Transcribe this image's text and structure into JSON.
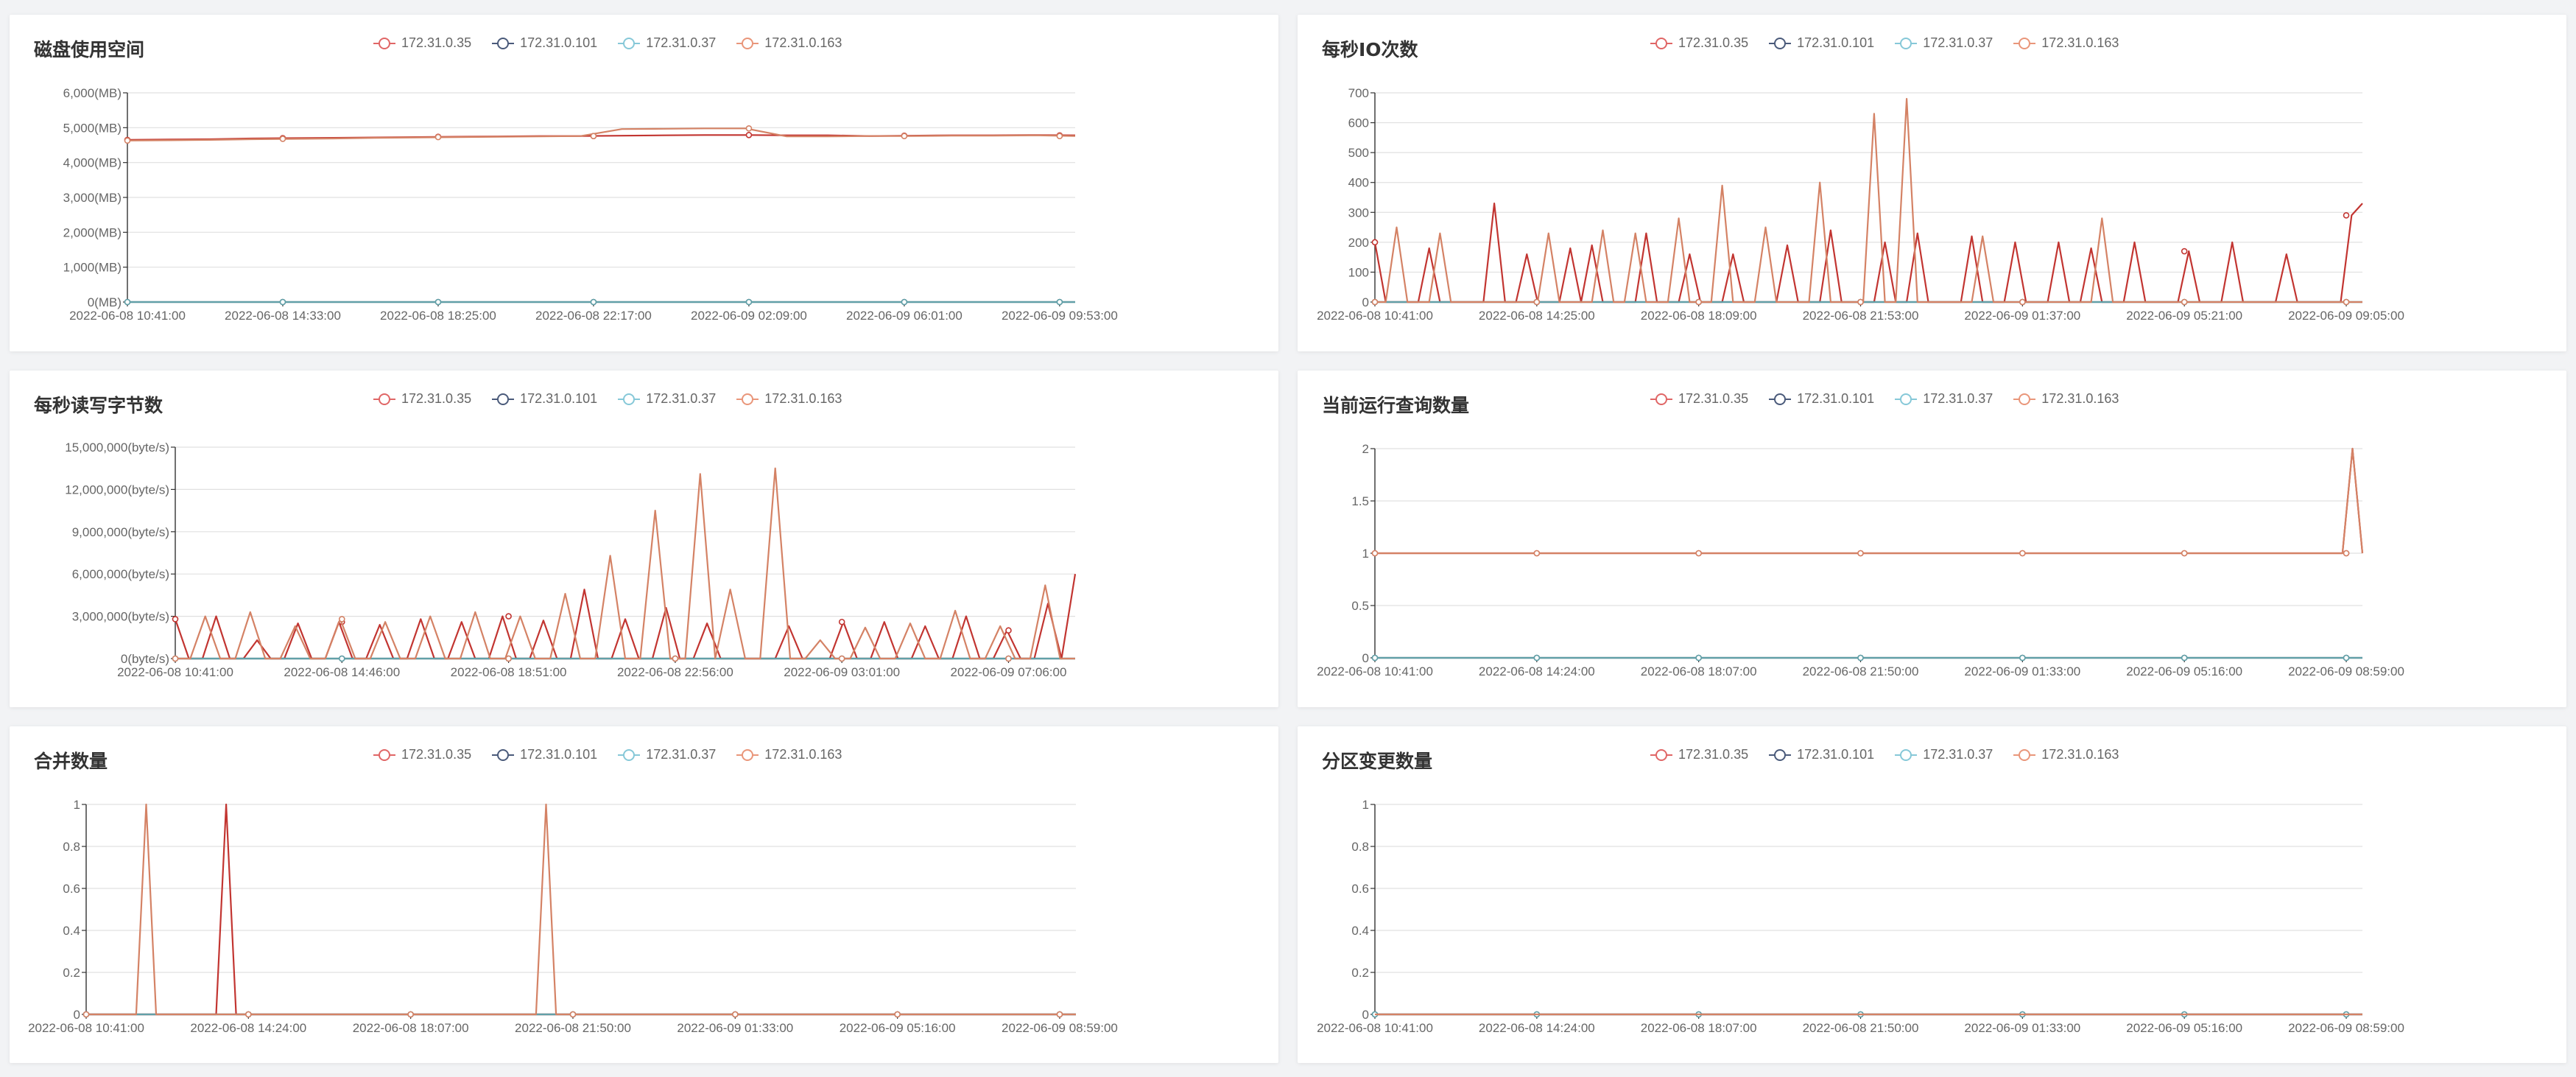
{
  "legend": {
    "series": [
      "172.31.0.35",
      "172.31.0.101",
      "172.31.0.37",
      "172.31.0.163"
    ],
    "colors": [
      "#e06666",
      "#4a5a7a",
      "#86c8d8",
      "#e9967a"
    ],
    "line_colors": [
      "#c23531",
      "#2f4554",
      "#61a0a8",
      "#d48265"
    ]
  },
  "chart_data": [
    {
      "id": "disk",
      "type": "line",
      "title": "磁盘使用空间",
      "y_ticks": [
        "0(MB)",
        "1,000(MB)",
        "2,000(MB)",
        "3,000(MB)",
        "4,000(MB)",
        "5,000(MB)",
        "6,000(MB)"
      ],
      "ylim": [
        0,
        6000
      ],
      "x_ticks": [
        "2022-06-08 10:41:00",
        "2022-06-08 14:33:00",
        "2022-06-08 18:25:00",
        "2022-06-08 22:17:00",
        "2022-06-09 02:09:00",
        "2022-06-09 06:01:00",
        "2022-06-09 09:53:00"
      ],
      "series": [
        {
          "values": [
            4650,
            4660,
            4670,
            4690,
            4700,
            4710,
            4720,
            4730,
            4740,
            4750,
            4760,
            4760,
            4770,
            4780,
            4790,
            4790,
            4780,
            4780,
            4760,
            4770,
            4780,
            4780,
            4790,
            4780
          ]
        },
        {
          "values": [
            0,
            0
          ]
        },
        {
          "values": [
            0,
            0
          ]
        },
        {
          "values": [
            4630,
            4640,
            4650,
            4670,
            4680,
            4690,
            4710,
            4720,
            4730,
            4740,
            4750,
            4760,
            4960,
            4970,
            4980,
            4980,
            4750,
            4750,
            4760,
            4760,
            4770,
            4770,
            4780,
            4760
          ]
        }
      ]
    },
    {
      "id": "io",
      "type": "line",
      "title": "每秒IO次数",
      "y_ticks": [
        "0",
        "100",
        "200",
        "300",
        "400",
        "500",
        "600",
        "700"
      ],
      "ylim": [
        0,
        700
      ],
      "x_ticks": [
        "2022-06-08 10:41:00",
        "2022-06-08 14:25:00",
        "2022-06-08 18:09:00",
        "2022-06-08 21:53:00",
        "2022-06-09 01:37:00",
        "2022-06-09 05:21:00",
        "2022-06-09 09:05:00"
      ],
      "series": [
        {
          "values": [
            200,
            0,
            0,
            0,
            0,
            180,
            0,
            0,
            0,
            0,
            0,
            330,
            0,
            0,
            160,
            0,
            0,
            0,
            180,
            0,
            190,
            0,
            0,
            0,
            0,
            230,
            0,
            0,
            0,
            160,
            0,
            0,
            0,
            160,
            0,
            0,
            0,
            0,
            190,
            0,
            0,
            0,
            240,
            0,
            0,
            0,
            0,
            200,
            0,
            0,
            230,
            0,
            0,
            0,
            0,
            220,
            0,
            0,
            0,
            200,
            0,
            0,
            0,
            200,
            0,
            0,
            180,
            0,
            0,
            0,
            200,
            0,
            0,
            0,
            0,
            170,
            0,
            0,
            0,
            200,
            0,
            0,
            0,
            0,
            160,
            0,
            0,
            0,
            0,
            0,
            290,
            330
          ]
        },
        {
          "values": [
            0,
            0
          ]
        },
        {
          "values": [
            0,
            0
          ]
        },
        {
          "values": [
            0,
            0,
            250,
            0,
            0,
            0,
            230,
            0,
            0,
            0,
            0,
            0,
            0,
            0,
            0,
            0,
            230,
            0,
            0,
            0,
            0,
            240,
            0,
            0,
            230,
            0,
            0,
            0,
            280,
            0,
            0,
            0,
            390,
            0,
            0,
            0,
            250,
            0,
            0,
            0,
            0,
            400,
            0,
            0,
            0,
            0,
            630,
            0,
            0,
            680,
            0,
            0,
            0,
            0,
            0,
            0,
            220,
            0,
            0,
            0,
            0,
            0,
            0,
            0,
            0,
            0,
            0,
            280,
            0,
            0,
            0,
            0,
            0,
            0,
            0,
            0,
            0,
            0,
            0,
            0,
            0,
            0,
            0,
            0,
            0,
            0,
            0,
            0,
            0,
            0,
            0,
            0
          ]
        }
      ]
    },
    {
      "id": "bytes",
      "type": "line",
      "title": "每秒读写字节数",
      "y_ticks": [
        "0(byte/s)",
        "3,000,000(byte/s)",
        "6,000,000(byte/s)",
        "9,000,000(byte/s)",
        "12,000,000(byte/s)",
        "15,000,000(byte/s)"
      ],
      "ylim": [
        0,
        15000000
      ],
      "x_ticks": [
        "2022-06-08 10:41:00",
        "2022-06-08 14:46:00",
        "2022-06-08 18:51:00",
        "2022-06-08 22:56:00",
        "2022-06-09 03:01:00",
        "2022-06-09 07:06:00"
      ],
      "series": [
        {
          "values": [
            2800000,
            0,
            0,
            3000000,
            0,
            0,
            1300000,
            0,
            0,
            2500000,
            0,
            0,
            2600000,
            0,
            0,
            2400000,
            0,
            0,
            2800000,
            0,
            0,
            2600000,
            0,
            0,
            3000000,
            0,
            0,
            2700000,
            0,
            0,
            4900000,
            0,
            0,
            2800000,
            0,
            0,
            3600000,
            0,
            0,
            2500000,
            0,
            0,
            0,
            0,
            0,
            2300000,
            0,
            0,
            0,
            2600000,
            0,
            0,
            2600000,
            0,
            0,
            2300000,
            0,
            0,
            3000000,
            0,
            0,
            2000000,
            0,
            0,
            3900000,
            0,
            6000000
          ]
        },
        {
          "values": [
            0,
            0
          ]
        },
        {
          "values": [
            0,
            0
          ]
        },
        {
          "values": [
            0,
            0,
            3000000,
            0,
            0,
            3300000,
            0,
            0,
            2300000,
            0,
            0,
            2800000,
            0,
            0,
            2600000,
            0,
            0,
            3000000,
            0,
            0,
            3300000,
            0,
            0,
            3000000,
            0,
            0,
            4600000,
            0,
            0,
            7300000,
            0,
            0,
            10500000,
            0,
            0,
            13100000,
            0,
            4900000,
            0,
            0,
            13500000,
            0,
            0,
            1300000,
            0,
            0,
            2200000,
            0,
            0,
            2500000,
            0,
            0,
            3400000,
            0,
            0,
            2300000,
            0,
            0,
            5200000,
            0,
            0
          ]
        }
      ]
    },
    {
      "id": "queries",
      "type": "line",
      "title": "当前运行查询数量",
      "y_ticks": [
        "0",
        "0.5",
        "1",
        "1.5",
        "2"
      ],
      "ylim": [
        0,
        2
      ],
      "x_ticks": [
        "2022-06-08 10:41:00",
        "2022-06-08 14:24:00",
        "2022-06-08 18:07:00",
        "2022-06-08 21:50:00",
        "2022-06-09 01:33:00",
        "2022-06-09 05:16:00",
        "2022-06-09 08:59:00"
      ],
      "series": [
        {
          "values": [
            1,
            1,
            1,
            1,
            1,
            1,
            1,
            1,
            1,
            1,
            1,
            1,
            1,
            1,
            1,
            1,
            1,
            1,
            1,
            1,
            1,
            1,
            1,
            1,
            1,
            1,
            1,
            1,
            1,
            1,
            1,
            1,
            1,
            1,
            1,
            1,
            1,
            1,
            1,
            1,
            1,
            1,
            1,
            1,
            1,
            1,
            1,
            1,
            1,
            1,
            1,
            1,
            1,
            1,
            1,
            1,
            1,
            1,
            1,
            1,
            1,
            1,
            1,
            1,
            1,
            1,
            1,
            1,
            1,
            1,
            1,
            1,
            1,
            1,
            1,
            1,
            1,
            1,
            1,
            1,
            1,
            1,
            1,
            1,
            1,
            1,
            1,
            1,
            1,
            1,
            1,
            1,
            1,
            1,
            1,
            1,
            1,
            1,
            2,
            1
          ]
        },
        {
          "values": [
            0,
            0
          ]
        },
        {
          "values": [
            0,
            0
          ]
        },
        {
          "values": [
            1,
            1,
            1,
            1,
            1,
            1,
            1,
            1,
            1,
            1,
            1,
            1,
            1,
            1,
            1,
            1,
            1,
            1,
            1,
            1,
            1,
            1,
            1,
            1,
            1,
            1,
            1,
            1,
            1,
            1,
            1,
            1,
            1,
            1,
            1,
            1,
            1,
            1,
            1,
            1,
            1,
            1,
            1,
            1,
            1,
            1,
            1,
            1,
            1,
            1,
            1,
            1,
            1,
            1,
            1,
            1,
            1,
            1,
            1,
            1,
            1,
            1,
            1,
            1,
            1,
            1,
            1,
            1,
            1,
            1,
            1,
            1,
            1,
            1,
            1,
            1,
            1,
            1,
            1,
            1,
            1,
            1,
            1,
            1,
            1,
            1,
            1,
            1,
            1,
            1,
            1,
            1,
            1,
            1,
            1,
            1,
            1,
            1,
            2,
            1
          ]
        }
      ]
    },
    {
      "id": "merges",
      "type": "line",
      "title": "合并数量",
      "y_ticks": [
        "0",
        "0.2",
        "0.4",
        "0.6",
        "0.8",
        "1"
      ],
      "ylim": [
        0,
        1
      ],
      "x_ticks": [
        "2022-06-08 10:41:00",
        "2022-06-08 14:24:00",
        "2022-06-08 18:07:00",
        "2022-06-08 21:50:00",
        "2022-06-09 01:33:00",
        "2022-06-09 05:16:00",
        "2022-06-09 08:59:00"
      ],
      "series": [
        {
          "values": [
            0,
            0,
            0,
            0,
            0,
            0,
            0,
            0,
            0,
            0,
            0,
            0,
            0,
            0,
            1,
            0,
            0,
            0,
            0,
            0,
            0,
            0,
            0,
            0,
            0,
            0,
            0,
            0,
            0,
            0,
            0,
            0,
            0,
            0,
            0,
            0,
            0,
            0,
            0,
            0,
            0,
            0,
            0,
            0,
            0,
            0,
            0,
            0,
            0,
            0,
            0,
            0,
            0,
            0,
            0,
            0,
            0,
            0,
            0,
            0,
            0,
            0,
            0,
            0,
            0,
            0,
            0,
            0,
            0,
            0,
            0,
            0,
            0,
            0,
            0,
            0,
            0,
            0,
            0,
            0,
            0,
            0,
            0,
            0,
            0,
            0,
            0,
            0,
            0,
            0,
            0,
            0,
            0,
            0,
            0,
            0,
            0,
            0,
            0,
            0
          ]
        },
        {
          "values": [
            0,
            0
          ]
        },
        {
          "values": [
            0,
            0
          ]
        },
        {
          "values": [
            0,
            0,
            0,
            0,
            0,
            0,
            1,
            0,
            0,
            0,
            0,
            0,
            0,
            0,
            0,
            0,
            0,
            0,
            0,
            0,
            0,
            0,
            0,
            0,
            0,
            0,
            0,
            0,
            0,
            0,
            0,
            0,
            0,
            0,
            0,
            0,
            0,
            0,
            0,
            0,
            0,
            0,
            0,
            0,
            0,
            0,
            1,
            0,
            0,
            0,
            0,
            0,
            0,
            0,
            0,
            0,
            0,
            0,
            0,
            0,
            0,
            0,
            0,
            0,
            0,
            0,
            0,
            0,
            0,
            0,
            0,
            0,
            0,
            0,
            0,
            0,
            0,
            0,
            0,
            0,
            0,
            0,
            0,
            0,
            0,
            0,
            0,
            0,
            0,
            0,
            0,
            0,
            0,
            0,
            0,
            0,
            0,
            0,
            0,
            0
          ]
        }
      ]
    },
    {
      "id": "partitions",
      "type": "line",
      "title": "分区变更数量",
      "y_ticks": [
        "0",
        "0.2",
        "0.4",
        "0.6",
        "0.8",
        "1"
      ],
      "ylim": [
        0,
        1
      ],
      "x_ticks": [
        "2022-06-08 10:41:00",
        "2022-06-08 14:24:00",
        "2022-06-08 18:07:00",
        "2022-06-08 21:50:00",
        "2022-06-09 01:33:00",
        "2022-06-09 05:16:00",
        "2022-06-09 08:59:00"
      ],
      "series": [
        {
          "values": [
            0,
            0
          ]
        },
        {
          "values": [
            0,
            0
          ]
        },
        {
          "values": [
            0,
            0
          ]
        },
        {
          "values": [
            0,
            0
          ]
        }
      ]
    }
  ]
}
